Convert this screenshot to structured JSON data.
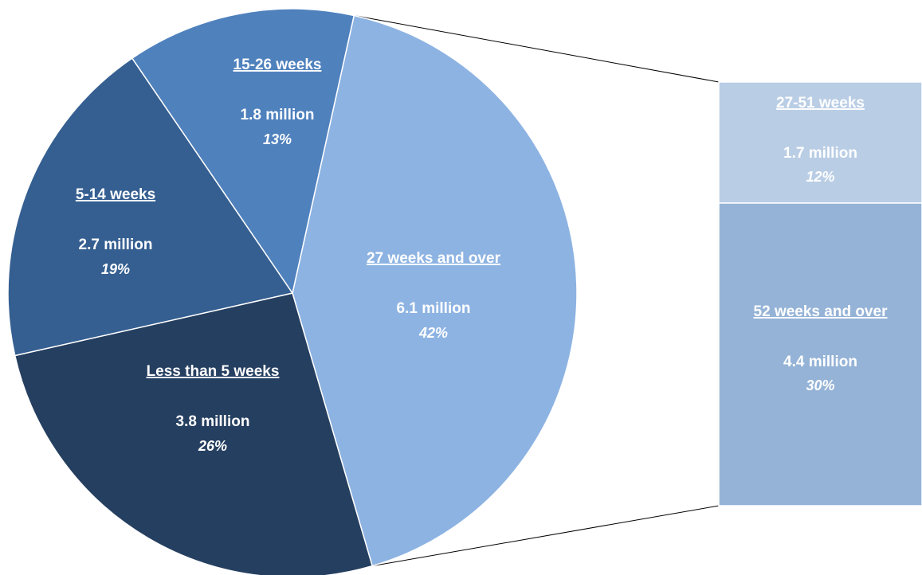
{
  "chart_data": {
    "type": "bar-of-pie",
    "pie": {
      "slices": [
        {
          "label": "27 weeks and over",
          "value_text": "6.1 million",
          "percent_text": "42%",
          "value": 6.1,
          "percent": 42,
          "color": "#8DB3E2"
        },
        {
          "label": "Less than 5 weeks",
          "value_text": "3.8 million",
          "percent_text": "26%",
          "value": 3.8,
          "percent": 26,
          "color": "#253F60"
        },
        {
          "label": "5-14 weeks",
          "value_text": "2.7 million",
          "percent_text": "19%",
          "value": 2.7,
          "percent": 19,
          "color": "#355F91"
        },
        {
          "label": "15-26 weeks",
          "value_text": "1.8 million",
          "percent_text": "13%",
          "value": 1.8,
          "percent": 13,
          "color": "#4F81BD"
        }
      ]
    },
    "breakdown": {
      "of_slice": "27 weeks and over",
      "segments": [
        {
          "label": "27-51 weeks",
          "value_text": "1.7 million",
          "percent_text": "12%",
          "value": 1.7,
          "percent": 12,
          "color": "#B9CDE5"
        },
        {
          "label": "52 weeks and over",
          "value_text": "4.4 million",
          "percent_text": "30%",
          "value": 4.4,
          "percent": 30,
          "color": "#95B3D7"
        }
      ]
    }
  }
}
